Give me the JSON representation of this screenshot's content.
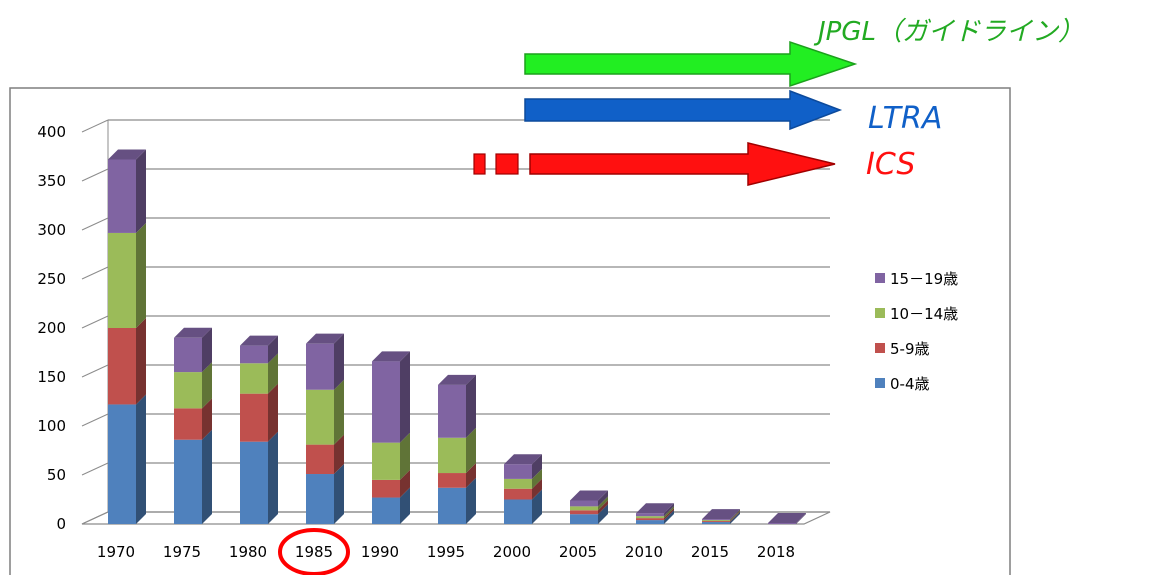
{
  "chart_data": {
    "type": "bar",
    "stacked": true,
    "three_d": true,
    "categories": [
      "1970",
      "1975",
      "1980",
      "1985",
      "1990",
      "1995",
      "2000",
      "2005",
      "2010",
      "2015",
      "2018"
    ],
    "series": [
      {
        "name": "0-4歳",
        "color": "#4f81bd",
        "values": [
          122,
          86,
          84,
          51,
          27,
          37,
          25,
          10,
          4,
          2,
          0
        ]
      },
      {
        "name": "5-9歳",
        "color": "#c0504d",
        "values": [
          78,
          32,
          49,
          30,
          18,
          15,
          11,
          4,
          2,
          1,
          0
        ]
      },
      {
        "name": "10－14歳",
        "color": "#9bbb59",
        "values": [
          97,
          37,
          31,
          56,
          38,
          36,
          10,
          4,
          2,
          1,
          0
        ]
      },
      {
        "name": "15－19歳",
        "color": "#8064a2",
        "values": [
          75,
          35,
          18,
          47,
          83,
          54,
          15,
          6,
          3,
          1,
          1
        ]
      }
    ],
    "yticks": [
      "0",
      "50",
      "100",
      "150",
      "200",
      "250",
      "300",
      "350",
      "400"
    ],
    "ylim": [
      0,
      400
    ],
    "grid": true,
    "legend_position": "right",
    "highlighted_category": "1985"
  },
  "annotations": {
    "jpgl": {
      "label": "JPGL（ガイドライン）",
      "color": "#22aa22",
      "arrow_color": "#22ee22"
    },
    "ltra": {
      "label": "LTRA",
      "color": "#1060c8",
      "arrow_color": "#1060c8"
    },
    "ics": {
      "label": "ICS",
      "color": "#ff1010",
      "arrow_color": "#ff1010"
    }
  },
  "colors": {
    "grid": "#8c8c8c",
    "border": "#7f7f7f",
    "highlight": "#ff0000"
  }
}
